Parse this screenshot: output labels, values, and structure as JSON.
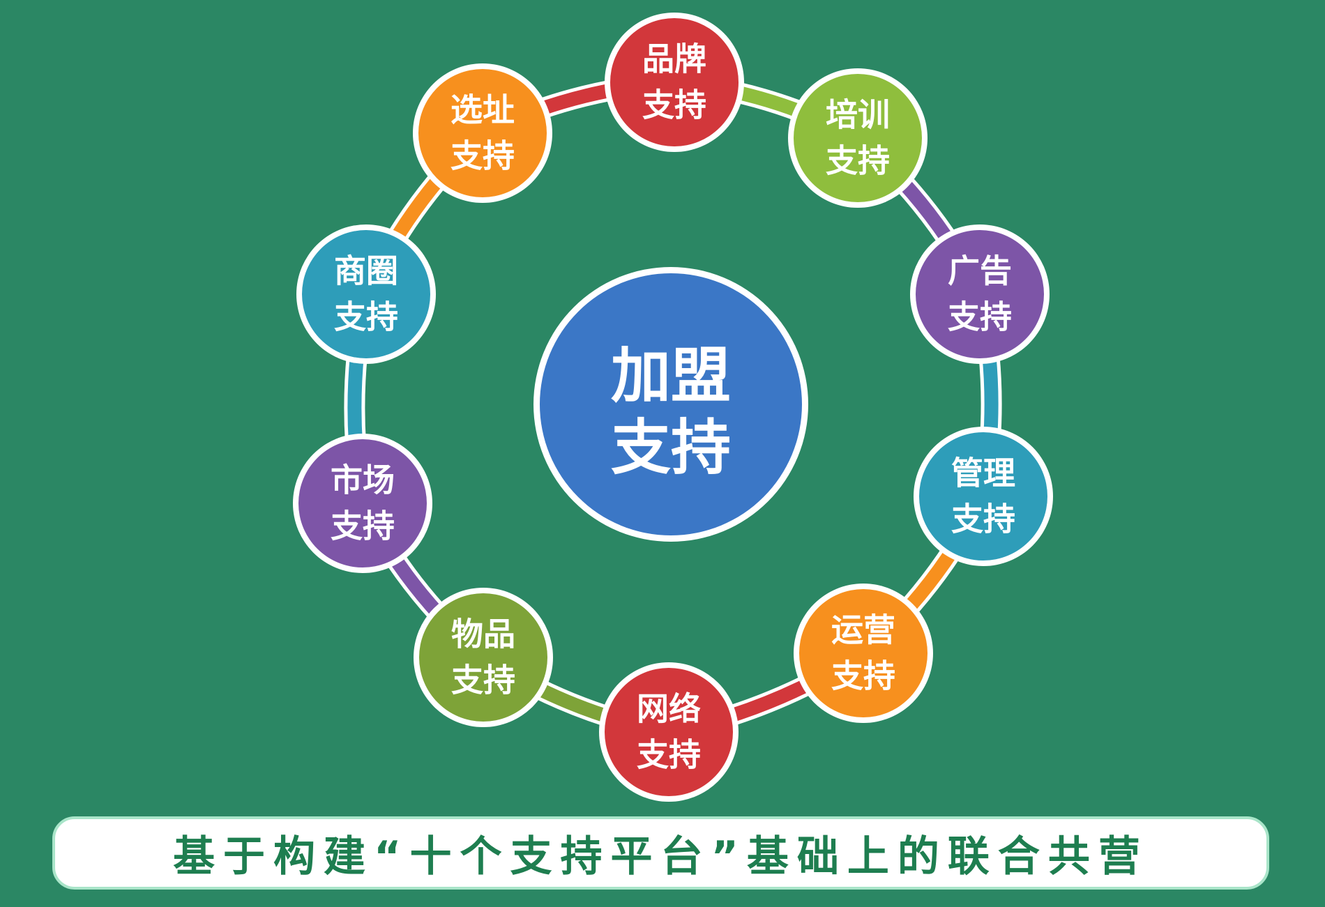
{
  "center": {
    "line1": "加盟",
    "line2": "支持",
    "color": "#3b77c6"
  },
  "nodes": [
    {
      "id": "brand",
      "line1": "品牌",
      "line2": "支持",
      "color": "#d2373b"
    },
    {
      "id": "training",
      "line1": "培训",
      "line2": "支持",
      "color": "#8fbe3d"
    },
    {
      "id": "advertising",
      "line1": "广告",
      "line2": "支持",
      "color": "#7d55a7"
    },
    {
      "id": "management",
      "line1": "管理",
      "line2": "支持",
      "color": "#2e9db9"
    },
    {
      "id": "operation",
      "line1": "运营",
      "line2": "支持",
      "color": "#f7901e"
    },
    {
      "id": "network",
      "line1": "网络",
      "line2": "支持",
      "color": "#d2373b"
    },
    {
      "id": "goods",
      "line1": "物品",
      "line2": "支持",
      "color": "#7ea338"
    },
    {
      "id": "market",
      "line1": "市场",
      "line2": "支持",
      "color": "#7d55a7"
    },
    {
      "id": "business-district",
      "line1": "商圈",
      "line2": "支持",
      "color": "#2e9db9"
    },
    {
      "id": "site-selection",
      "line1": "选址",
      "line2": "支持",
      "color": "#f7901e"
    }
  ],
  "connectors": [
    {
      "color": "#d2373b"
    },
    {
      "color": "#8fbe3d"
    },
    {
      "color": "#7d55a7"
    },
    {
      "color": "#2e9db9"
    },
    {
      "color": "#f7901e"
    },
    {
      "color": "#d2373b"
    },
    {
      "color": "#7ea338"
    },
    {
      "color": "#7d55a7"
    },
    {
      "color": "#2e9db9"
    },
    {
      "color": "#f7901e"
    }
  ],
  "banner": {
    "text": "基于构建“十个支持平台”基础上的联合共营"
  }
}
